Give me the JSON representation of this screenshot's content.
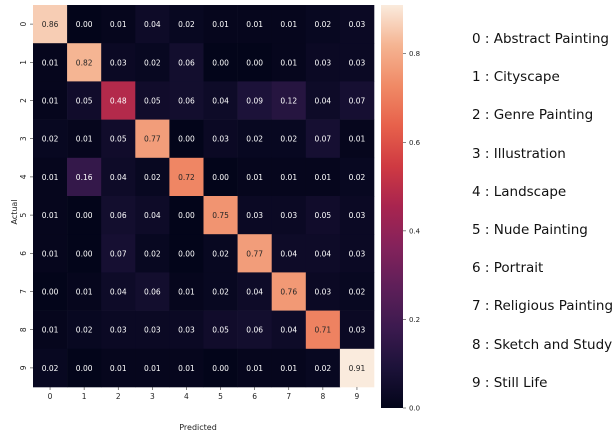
{
  "chart_data": {
    "type": "heatmap",
    "title": "",
    "xlabel": "Predicted",
    "ylabel": "Actual",
    "x_categories": [
      "0",
      "1",
      "2",
      "3",
      "4",
      "5",
      "6",
      "7",
      "8",
      "9"
    ],
    "y_categories": [
      "0",
      "1",
      "2",
      "3",
      "4",
      "5",
      "6",
      "7",
      "8",
      "9"
    ],
    "matrix": [
      [
        "0.86",
        "0.00",
        "0.01",
        "0.04",
        "0.02",
        "0.01",
        "0.01",
        "0.01",
        "0.02",
        "0.03"
      ],
      [
        "0.01",
        "0.82",
        "0.03",
        "0.02",
        "0.06",
        "0.00",
        "0.00",
        "0.01",
        "0.03",
        "0.03"
      ],
      [
        "0.01",
        "0.05",
        "0.48",
        "0.05",
        "0.06",
        "0.04",
        "0.09",
        "0.12",
        "0.04",
        "0.07"
      ],
      [
        "0.02",
        "0.01",
        "0.05",
        "0.77",
        "0.00",
        "0.03",
        "0.02",
        "0.02",
        "0.07",
        "0.01"
      ],
      [
        "0.01",
        "0.16",
        "0.04",
        "0.02",
        "0.72",
        "0.00",
        "0.01",
        "0.01",
        "0.01",
        "0.02"
      ],
      [
        "0.01",
        "0.00",
        "0.06",
        "0.04",
        "0.00",
        "0.75",
        "0.03",
        "0.03",
        "0.05",
        "0.03"
      ],
      [
        "0.01",
        "0.00",
        "0.07",
        "0.02",
        "0.00",
        "0.02",
        "0.77",
        "0.04",
        "0.04",
        "0.03"
      ],
      [
        "0.00",
        "0.01",
        "0.04",
        "0.06",
        "0.01",
        "0.02",
        "0.04",
        "0.76",
        "0.03",
        "0.02"
      ],
      [
        "0.01",
        "0.02",
        "0.03",
        "0.03",
        "0.03",
        "0.05",
        "0.06",
        "0.04",
        "0.71",
        "0.03"
      ],
      [
        "0.02",
        "0.00",
        "0.01",
        "0.01",
        "0.01",
        "0.00",
        "0.01",
        "0.01",
        "0.02",
        "0.91"
      ]
    ],
    "colorbar": {
      "min": 0.0,
      "max": 0.91,
      "ticks": [
        "0.0",
        "0.2",
        "0.4",
        "0.6",
        "0.8"
      ],
      "colormap": "rocket"
    },
    "grid": false
  },
  "legend": {
    "items": [
      "0 : Abstract Painting",
      "1 : Cityscape",
      "2 : Genre Painting",
      "3 : Illustration",
      "4 : Landscape",
      "5 : Nude Painting",
      "6 : Portrait",
      "7 : Religious Painting",
      "8 : Sketch and Study",
      "9 : Still Life"
    ]
  }
}
